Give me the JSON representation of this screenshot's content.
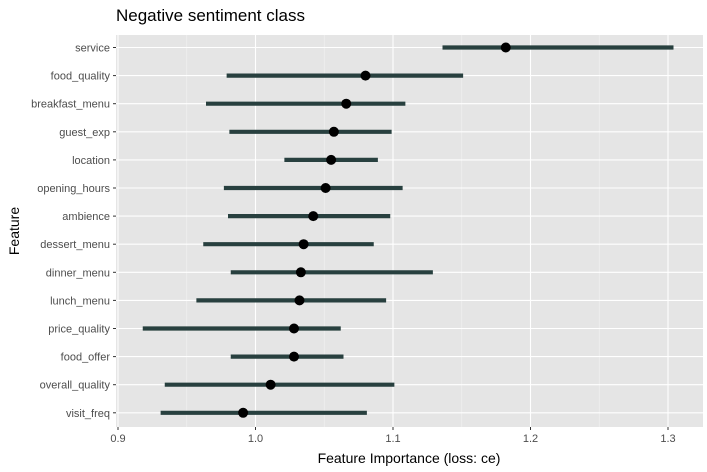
{
  "chart_data": {
    "type": "dot-errorbar",
    "title": "Negative sentiment class",
    "xlabel": "Feature Importance (loss: ce)",
    "ylabel": "Feature",
    "xlim": [
      0.9,
      1.31
    ],
    "x_ticks": [
      0.9,
      1.0,
      1.1,
      1.2,
      1.3
    ],
    "x_tick_labels": [
      "0.9",
      "1.0",
      "1.1",
      "1.2",
      "1.3"
    ],
    "grid": true,
    "features": [
      {
        "name": "service",
        "value": 1.182,
        "lower": 1.136,
        "upper": 1.304
      },
      {
        "name": "food_quality",
        "value": 1.08,
        "lower": 0.979,
        "upper": 1.151
      },
      {
        "name": "breakfast_menu",
        "value": 1.066,
        "lower": 0.964,
        "upper": 1.109
      },
      {
        "name": "guest_exp",
        "value": 1.057,
        "lower": 0.981,
        "upper": 1.099
      },
      {
        "name": "location",
        "value": 1.055,
        "lower": 1.021,
        "upper": 1.089
      },
      {
        "name": "opening_hours",
        "value": 1.051,
        "lower": 0.977,
        "upper": 1.107
      },
      {
        "name": "ambience",
        "value": 1.042,
        "lower": 0.98,
        "upper": 1.098
      },
      {
        "name": "dessert_menu",
        "value": 1.035,
        "lower": 0.962,
        "upper": 1.086
      },
      {
        "name": "dinner_menu",
        "value": 1.033,
        "lower": 0.982,
        "upper": 1.129
      },
      {
        "name": "lunch_menu",
        "value": 1.032,
        "lower": 0.957,
        "upper": 1.095
      },
      {
        "name": "price_quality",
        "value": 1.028,
        "lower": 0.918,
        "upper": 1.062
      },
      {
        "name": "food_offer",
        "value": 1.028,
        "lower": 0.982,
        "upper": 1.064
      },
      {
        "name": "overall_quality",
        "value": 1.011,
        "lower": 0.934,
        "upper": 1.101
      },
      {
        "name": "visit_freq",
        "value": 0.991,
        "lower": 0.931,
        "upper": 1.081
      }
    ]
  },
  "colors": {
    "panel": "#e5e5e5",
    "grid_major": "#ffffff",
    "errorbar": "#28403f",
    "point": "#000000"
  }
}
